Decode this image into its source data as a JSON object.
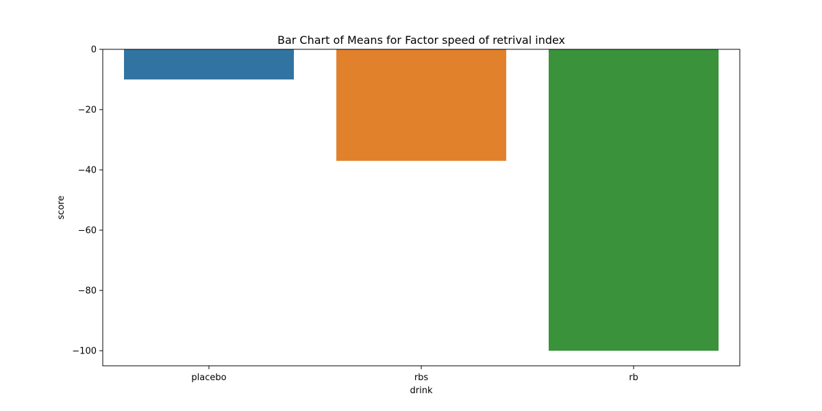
{
  "chart_data": {
    "type": "bar",
    "title": "Bar Chart of Means for Factor speed of retrival index",
    "xlabel": "drink",
    "ylabel": "score",
    "categories": [
      "placebo",
      "rbs",
      "rb"
    ],
    "values": [
      -10,
      -37,
      -100
    ],
    "colors": [
      "#3274a1",
      "#e1812c",
      "#3a923a"
    ],
    "ylim": [
      -105,
      0
    ],
    "yticks": [
      0,
      -20,
      -40,
      -60,
      -80,
      -100
    ],
    "ytick_labels": [
      "0",
      "−20",
      "−40",
      "−60",
      "−80",
      "−100"
    ],
    "grid": false,
    "legend": "none"
  }
}
